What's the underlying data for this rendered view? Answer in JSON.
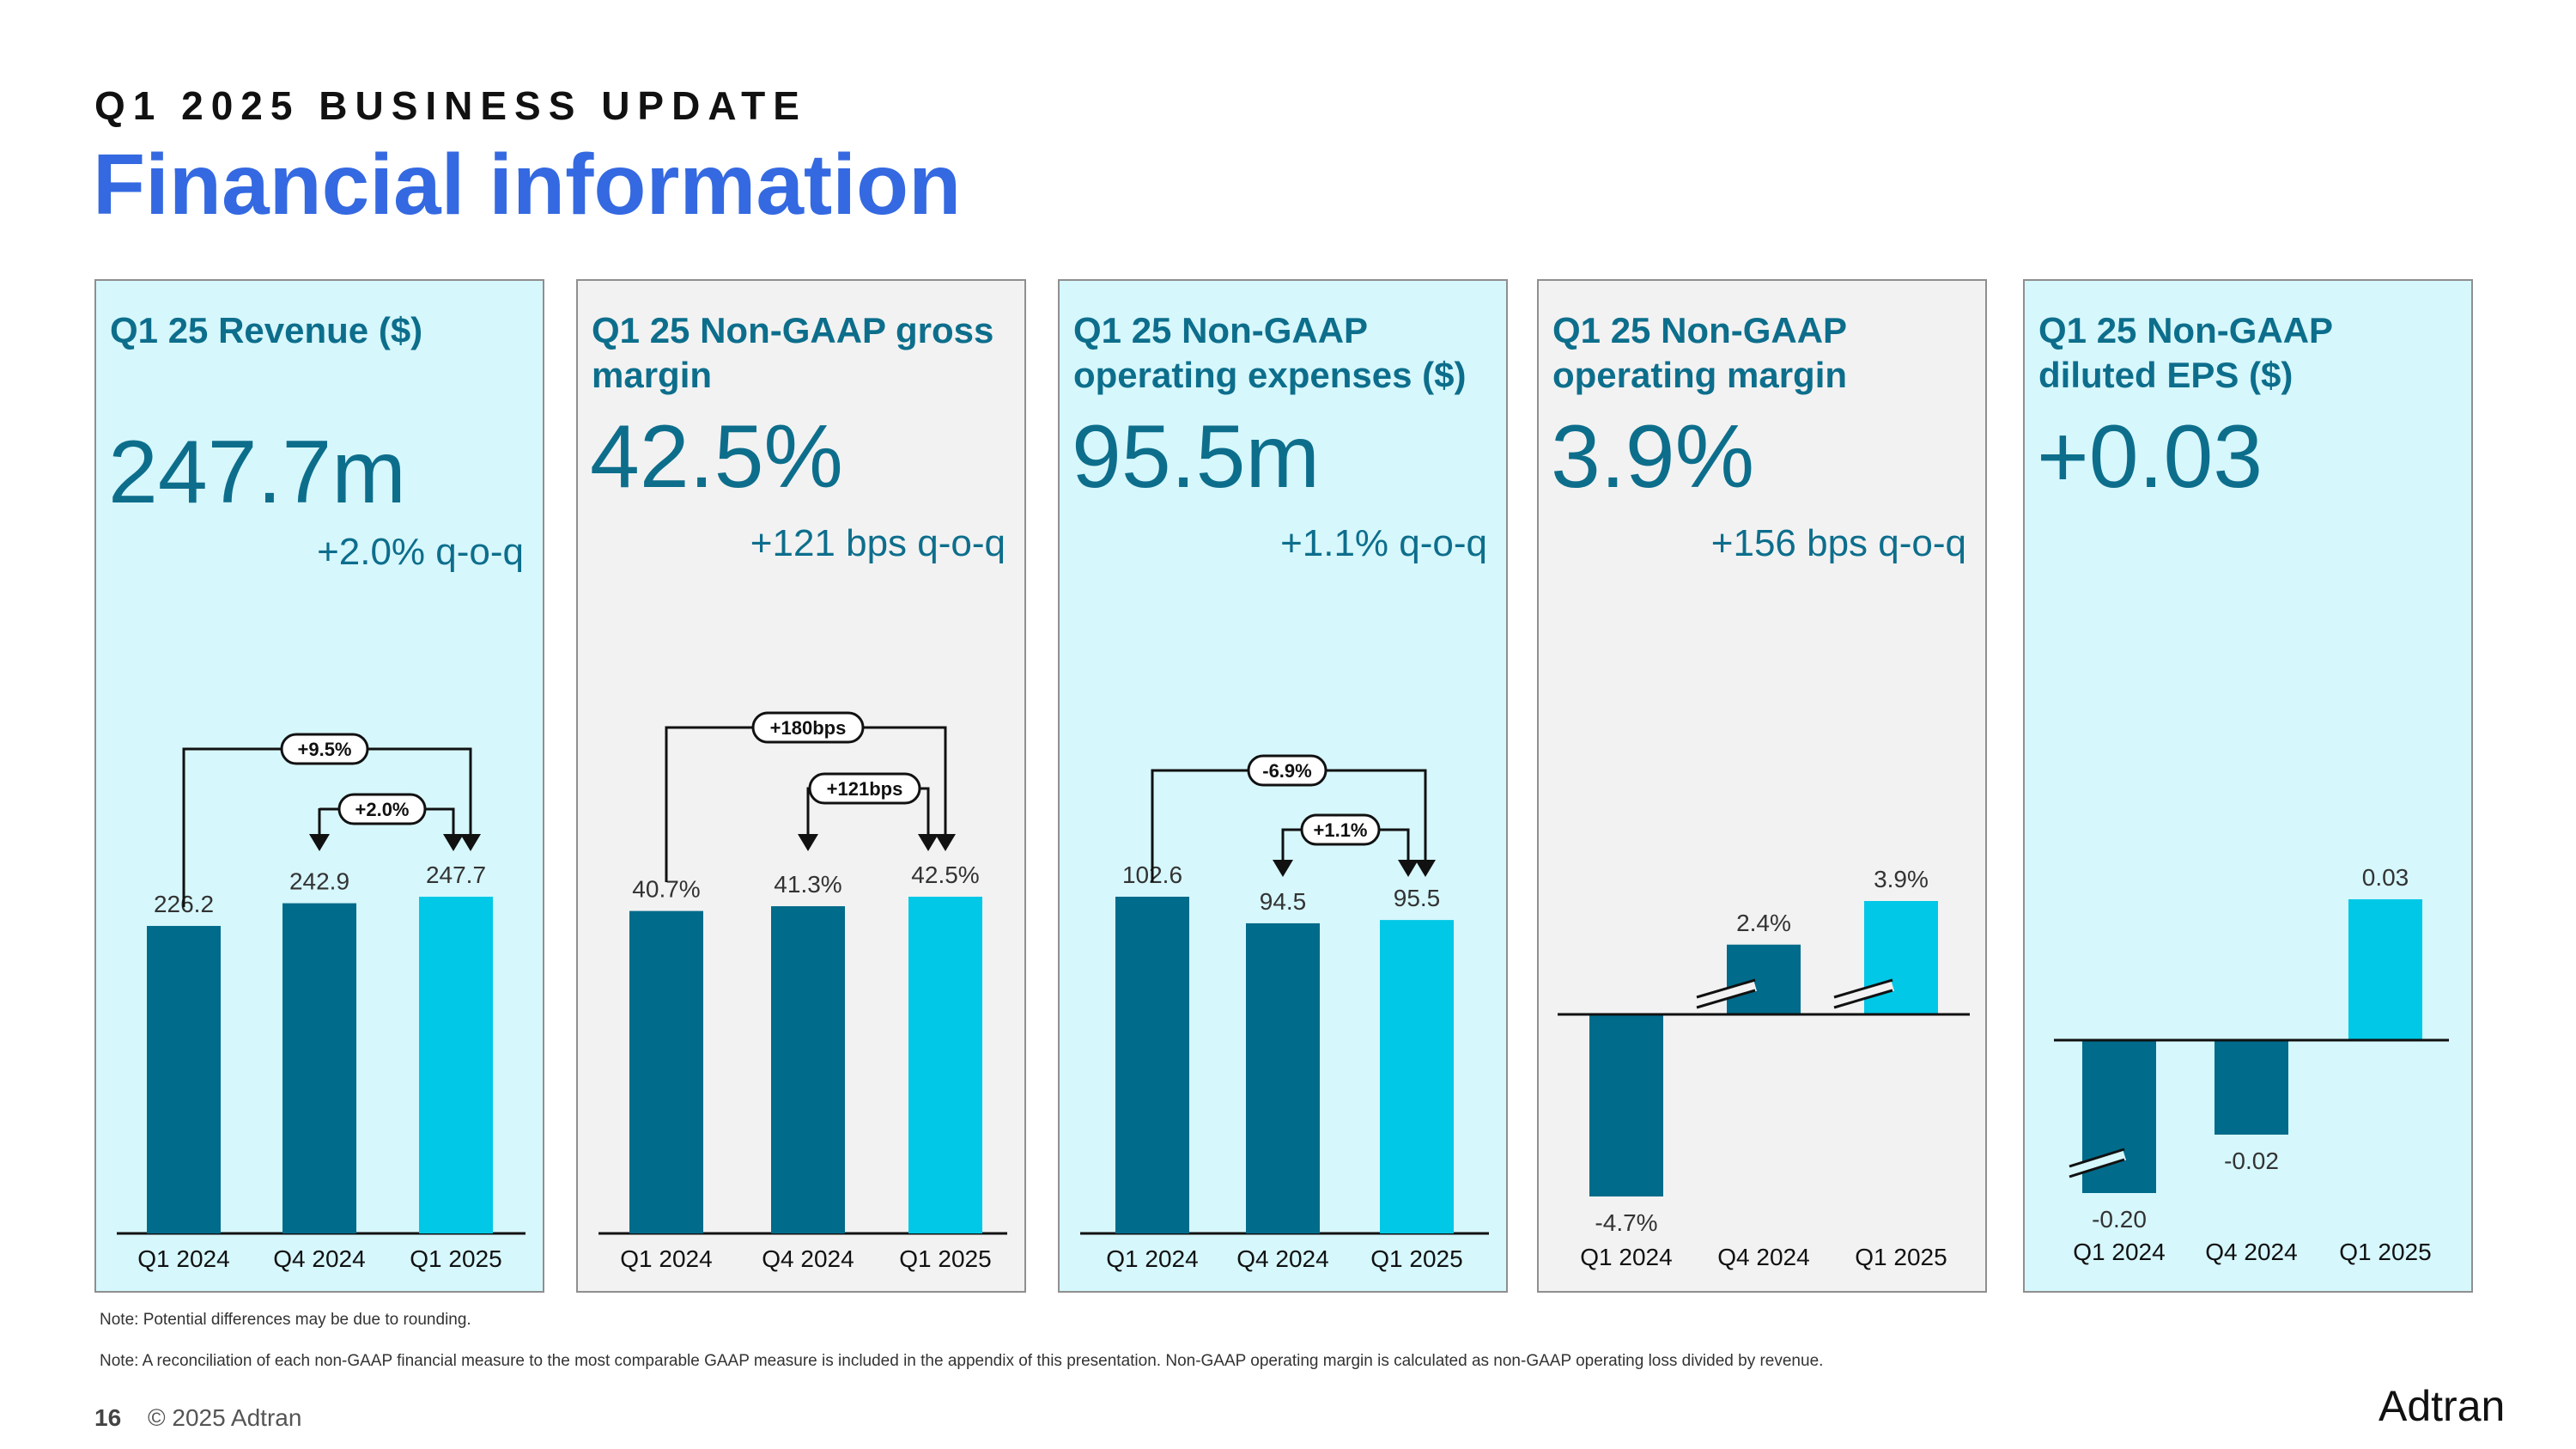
{
  "header": {
    "eyebrow": "Q1 2025 BUSINESS UPDATE",
    "title": "Financial information"
  },
  "colors": {
    "dark_bar": "#006b8a",
    "light_bar": "#00c8e6",
    "accent_text": "#0d6e8c",
    "title_blue": "#3469e1"
  },
  "panels": [
    {
      "title": "Q1 25 Revenue ($)",
      "big": "247.7m",
      "delta": "+2.0% q-o-q"
    },
    {
      "title": "Q1 25 Non-GAAP gross margin",
      "big": "42.5%",
      "delta": "+121 bps q-o-q"
    },
    {
      "title": "Q1 25 Non-GAAP operating expenses ($)",
      "big": "95.5m",
      "delta": "+1.1% q-o-q"
    },
    {
      "title": "Q1 25 Non-GAAP operating margin",
      "big": "3.9%",
      "delta": "+156 bps q-o-q"
    },
    {
      "title": "Q1 25 Non-GAAP diluted EPS ($)",
      "big": "+0.03",
      "delta": ""
    }
  ],
  "chart_data": [
    {
      "type": "bar",
      "title": "Q1 25 Revenue ($)",
      "categories": [
        "Q1 2024",
        "Q4 2024",
        "Q1 2025"
      ],
      "values": [
        226.2,
        242.9,
        247.7
      ],
      "labels": [
        "226.2",
        "242.9",
        "247.7"
      ],
      "annotations": [
        {
          "from": "Q1 2024",
          "to": "Q1 2025",
          "text": "+9.5%"
        },
        {
          "from": "Q4 2024",
          "to": "Q1 2025",
          "text": "+2.0%"
        }
      ]
    },
    {
      "type": "bar",
      "title": "Q1 25 Non-GAAP gross margin",
      "categories": [
        "Q1 2024",
        "Q4 2024",
        "Q1 2025"
      ],
      "values": [
        40.7,
        41.3,
        42.5
      ],
      "labels": [
        "40.7%",
        "41.3%",
        "42.5%"
      ],
      "annotations": [
        {
          "from": "Q1 2024",
          "to": "Q1 2025",
          "text": "+180bps"
        },
        {
          "from": "Q4 2024",
          "to": "Q1 2025",
          "text": "+121bps"
        }
      ]
    },
    {
      "type": "bar",
      "title": "Q1 25 Non-GAAP operating expenses ($)",
      "categories": [
        "Q1 2024",
        "Q4 2024",
        "Q1 2025"
      ],
      "values": [
        102.6,
        94.5,
        95.5
      ],
      "labels": [
        "102.6",
        "94.5",
        "95.5"
      ],
      "annotations": [
        {
          "from": "Q1 2024",
          "to": "Q1 2025",
          "text": "-6.9%"
        },
        {
          "from": "Q4 2024",
          "to": "Q1 2025",
          "text": "+1.1%"
        }
      ]
    },
    {
      "type": "bar",
      "title": "Q1 25 Non-GAAP operating margin",
      "categories": [
        "Q1 2024",
        "Q4 2024",
        "Q1 2025"
      ],
      "values": [
        -4.7,
        2.4,
        3.9
      ],
      "labels": [
        "-4.7%",
        "2.4%",
        "3.9%"
      ],
      "axis_break": [
        false,
        true,
        true
      ],
      "annotations": []
    },
    {
      "type": "bar",
      "title": "Q1 25 Non-GAAP diluted EPS ($)",
      "categories": [
        "Q1 2024",
        "Q4 2024",
        "Q1 2025"
      ],
      "values": [
        -0.2,
        -0.02,
        0.03
      ],
      "labels": [
        "-0.20",
        "-0.02",
        "0.03"
      ],
      "axis_break": [
        true,
        false,
        false
      ],
      "annotations": []
    }
  ],
  "notes": [
    "Note: Potential differences may be due to rounding.",
    "Note: A reconciliation of each non-GAAP financial measure to the most comparable GAAP measure is included in the appendix of this presentation. Non-GAAP operating margin is calculated as non-GAAP operating loss divided by revenue."
  ],
  "footer": {
    "page": "16",
    "copyright": "© 2025 Adtran",
    "logo_text": "Adtran"
  }
}
